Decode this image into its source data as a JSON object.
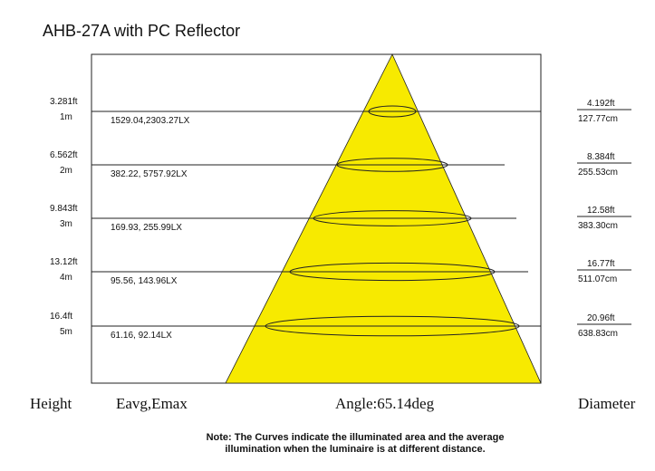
{
  "title": "AHB-27A with PC Reflector",
  "rows": [
    {
      "height_ft": "3.281ft",
      "height_m": "1m",
      "illuminance": "1529.04,2303.27LX",
      "diameter_ft": "4.192ft",
      "diameter_cm": "127.77cm"
    },
    {
      "height_ft": "6.562ft",
      "height_m": "2m",
      "illuminance": "382.22, 5757.92LX",
      "diameter_ft": "8.384ft",
      "diameter_cm": "255.53cm"
    },
    {
      "height_ft": "9.843ft",
      "height_m": "3m",
      "illuminance": "169.93, 255.99LX",
      "diameter_ft": "12.58ft",
      "diameter_cm": "383.30cm"
    },
    {
      "height_ft": "13.12ft",
      "height_m": "4m",
      "illuminance": "95.56, 143.96LX",
      "diameter_ft": "16.77ft",
      "diameter_cm": "511.07cm"
    },
    {
      "height_ft": "16.4ft",
      "height_m": "5m",
      "illuminance": "61.16, 92.14LX",
      "diameter_ft": "20.96ft",
      "diameter_cm": "638.83cm"
    }
  ],
  "footer": {
    "height": "Height",
    "eavg": "Eavg,Emax",
    "angle": "Angle:65.14deg",
    "diameter": "Diameter"
  },
  "note": [
    "Note: The Curves indicate the illuminated area and the average",
    "illumination when the luminaire is at different distance."
  ]
}
